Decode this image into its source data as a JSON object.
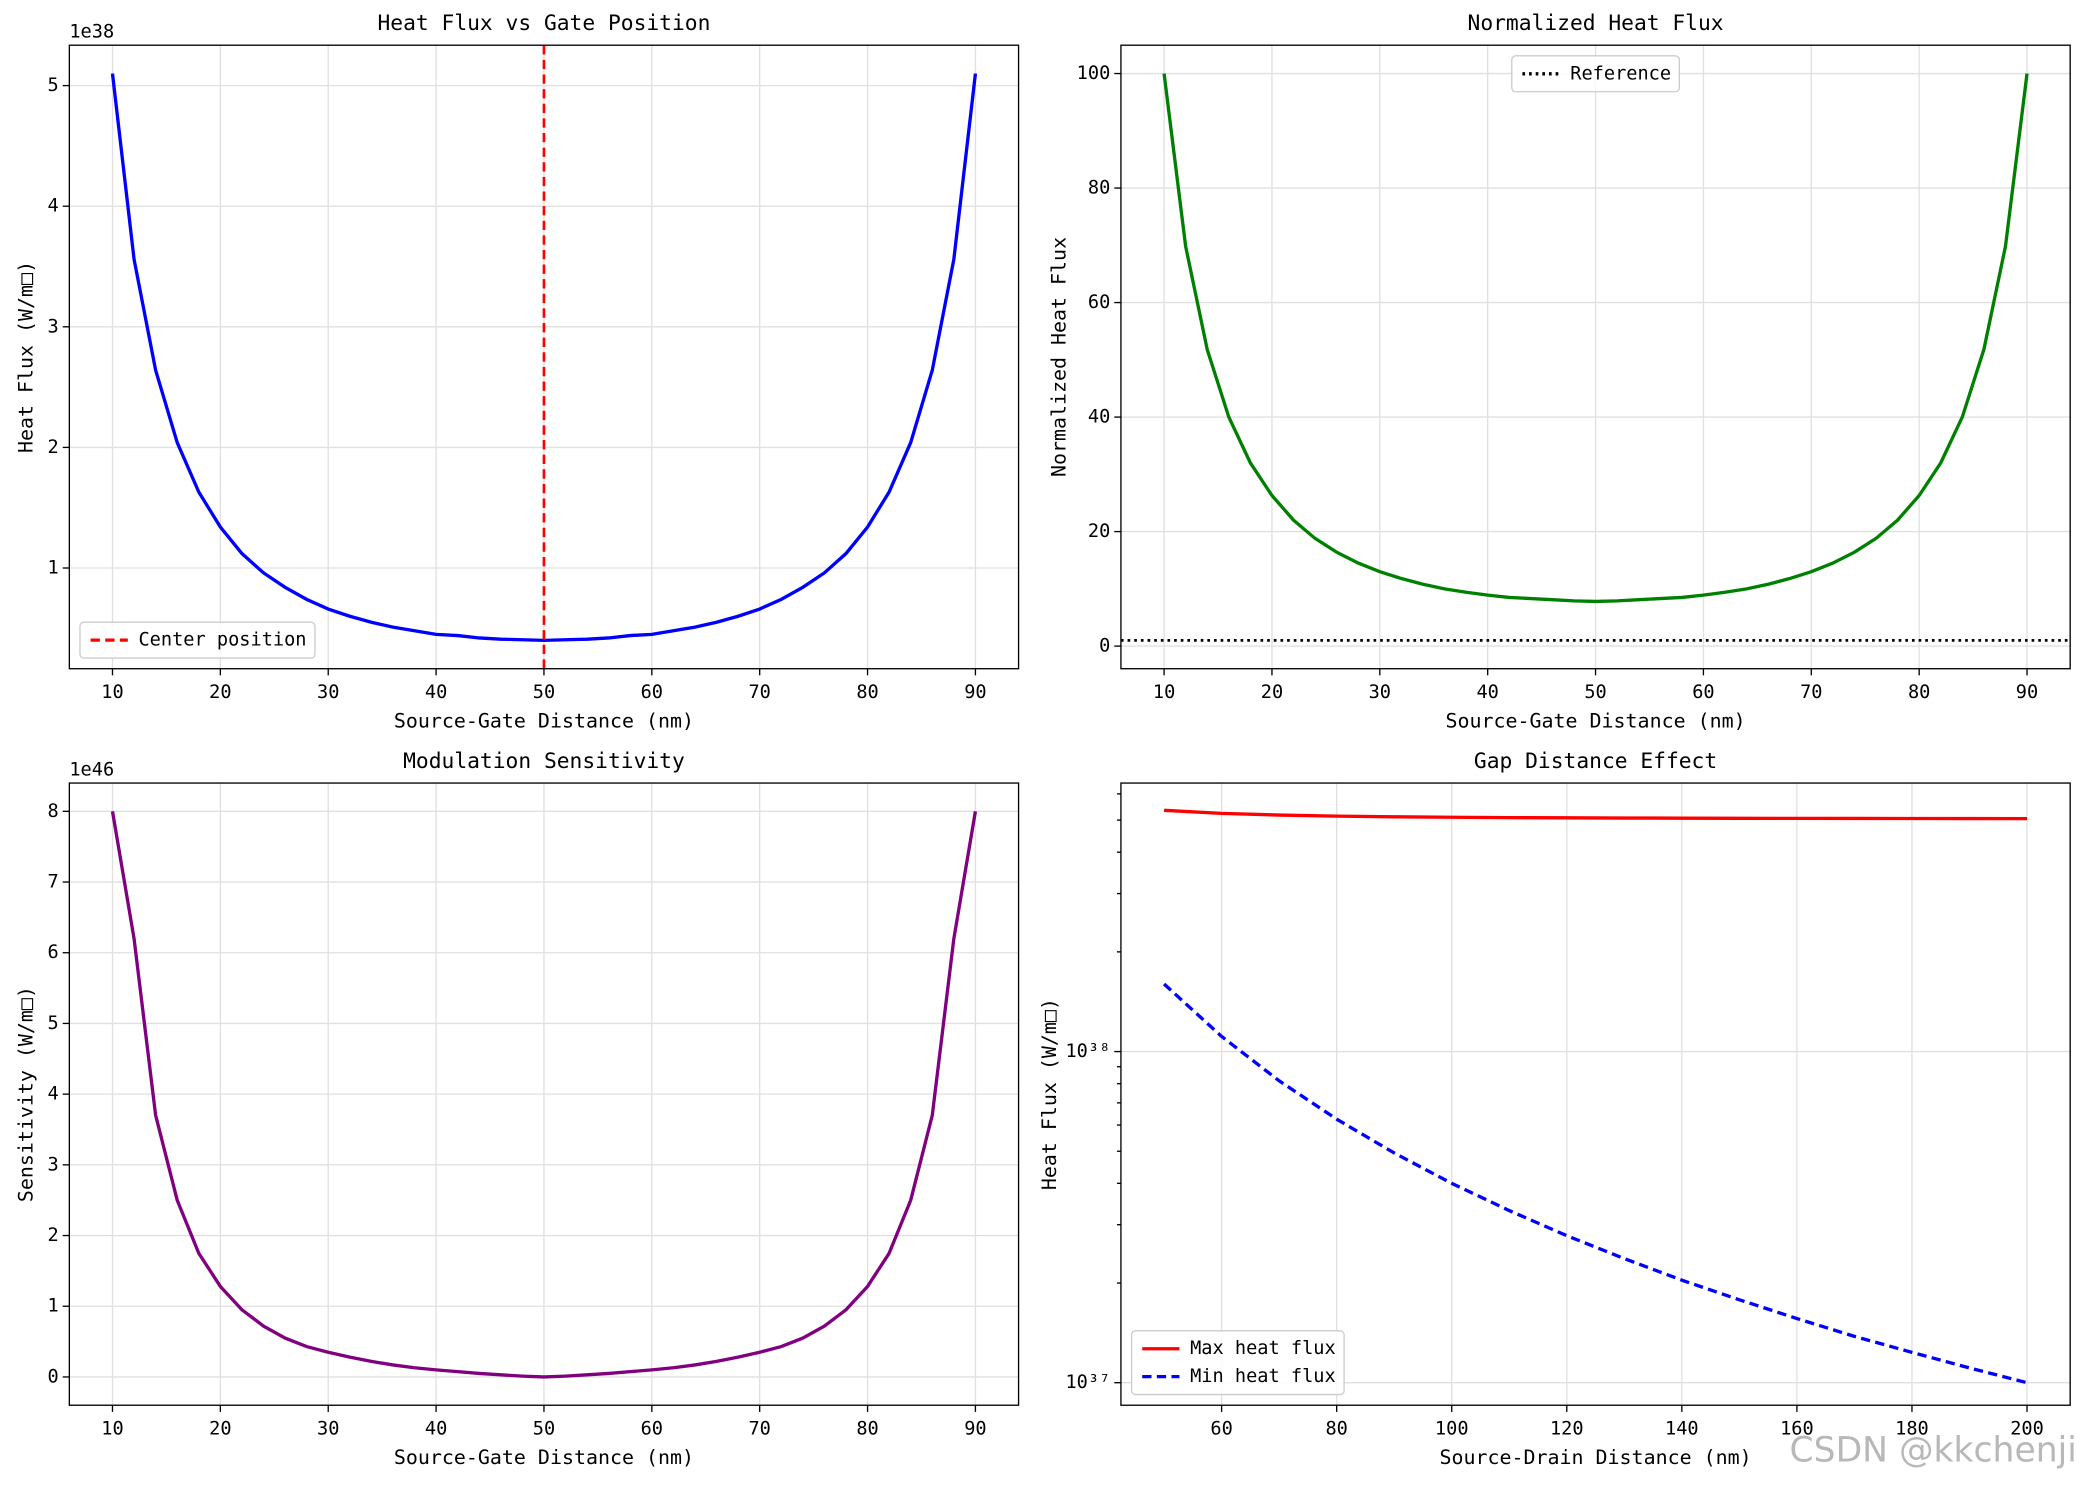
{
  "chart_data": [
    {
      "type": "line",
      "title": "Heat Flux vs Gate Position",
      "xlabel": "Source-Gate Distance (nm)",
      "ylabel": "Heat Flux (W/m□)",
      "offset_text": "1e38",
      "x": [
        10,
        12,
        14,
        16,
        18,
        20,
        22,
        24,
        26,
        28,
        30,
        32,
        34,
        36,
        38,
        40,
        42,
        44,
        46,
        48,
        50,
        52,
        54,
        56,
        58,
        60,
        62,
        64,
        66,
        68,
        70,
        72,
        74,
        76,
        78,
        80,
        82,
        84,
        86,
        88,
        90
      ],
      "series": [
        {
          "color": "#0000ff",
          "values": [
            5.1,
            3.56,
            2.64,
            2.04,
            1.63,
            1.34,
            1.12,
            0.96,
            0.84,
            0.74,
            0.66,
            0.6,
            0.55,
            0.51,
            0.48,
            0.45,
            0.44,
            0.42,
            0.41,
            0.405,
            0.4,
            0.405,
            0.41,
            0.42,
            0.44,
            0.45,
            0.48,
            0.51,
            0.55,
            0.6,
            0.66,
            0.74,
            0.84,
            0.96,
            1.12,
            1.34,
            1.63,
            2.04,
            2.64,
            3.56,
            5.1
          ]
        }
      ],
      "vlines": [
        {
          "x": 50,
          "name": "Center position",
          "color": "#ff0000",
          "style": "dashed"
        }
      ],
      "xlim": [
        6,
        94
      ],
      "ylim": [
        0.165,
        5.335
      ],
      "xticks": [
        10,
        20,
        30,
        40,
        50,
        60,
        70,
        80,
        90
      ],
      "yticks": [
        1,
        2,
        3,
        4,
        5
      ],
      "grid": true,
      "legend": "lower left"
    },
    {
      "type": "line",
      "title": "Normalized Heat Flux",
      "xlabel": "Source-Gate Distance (nm)",
      "ylabel": "Normalized Heat Flux",
      "x": [
        10,
        12,
        14,
        16,
        18,
        20,
        22,
        24,
        26,
        28,
        30,
        32,
        34,
        36,
        38,
        40,
        42,
        44,
        46,
        48,
        50,
        52,
        54,
        56,
        58,
        60,
        62,
        64,
        66,
        68,
        70,
        72,
        74,
        76,
        78,
        80,
        82,
        84,
        86,
        88,
        90
      ],
      "series": [
        {
          "color": "#008000",
          "values": [
            100,
            69.8,
            51.8,
            40.0,
            32.0,
            26.3,
            22.0,
            18.8,
            16.4,
            14.5,
            13.0,
            11.8,
            10.8,
            10.0,
            9.4,
            8.9,
            8.5,
            8.3,
            8.1,
            7.9,
            7.8,
            7.9,
            8.1,
            8.3,
            8.5,
            8.9,
            9.4,
            10.0,
            10.8,
            11.8,
            13.0,
            14.5,
            16.4,
            18.8,
            22.0,
            26.3,
            32.0,
            40.0,
            51.8,
            69.8,
            100
          ]
        }
      ],
      "hlines": [
        {
          "y": 1,
          "name": "Reference",
          "color": "#000000",
          "style": "dotted"
        }
      ],
      "xlim": [
        6,
        94
      ],
      "ylim": [
        -3.95,
        104.95
      ],
      "xticks": [
        10,
        20,
        30,
        40,
        50,
        60,
        70,
        80,
        90
      ],
      "yticks": [
        0,
        20,
        40,
        60,
        80,
        100
      ],
      "grid": true,
      "legend": "upper center"
    },
    {
      "type": "line",
      "title": "Modulation Sensitivity",
      "xlabel": "Source-Gate Distance (nm)",
      "ylabel": "Sensitivity (W/m□)",
      "offset_text": "1e46",
      "x": [
        10,
        12,
        14,
        16,
        18,
        20,
        22,
        24,
        26,
        28,
        30,
        32,
        34,
        36,
        38,
        40,
        42,
        44,
        46,
        48,
        50,
        52,
        54,
        56,
        58,
        60,
        62,
        64,
        66,
        68,
        70,
        72,
        74,
        76,
        78,
        80,
        82,
        84,
        86,
        88,
        90
      ],
      "series": [
        {
          "color": "#800080",
          "values": [
            8.0,
            6.2,
            3.7,
            2.5,
            1.75,
            1.28,
            0.95,
            0.72,
            0.55,
            0.43,
            0.35,
            0.28,
            0.22,
            0.17,
            0.13,
            0.1,
            0.075,
            0.05,
            0.03,
            0.012,
            0,
            0.012,
            0.03,
            0.05,
            0.075,
            0.1,
            0.13,
            0.17,
            0.22,
            0.28,
            0.35,
            0.43,
            0.55,
            0.72,
            0.95,
            1.28,
            1.75,
            2.5,
            3.7,
            6.2,
            8.0
          ]
        }
      ],
      "xlim": [
        6,
        94
      ],
      "ylim": [
        -0.4,
        8.4
      ],
      "xticks": [
        10,
        20,
        30,
        40,
        50,
        60,
        70,
        80,
        90
      ],
      "yticks": [
        0,
        1,
        2,
        3,
        4,
        5,
        6,
        7,
        8
      ],
      "grid": true
    },
    {
      "type": "line",
      "title": "Gap Distance Effect",
      "xlabel": "Source-Drain Distance (nm)",
      "ylabel": "Heat Flux (W/m□)",
      "yscale": "log",
      "x": [
        50,
        60,
        70,
        80,
        90,
        100,
        110,
        120,
        130,
        140,
        150,
        160,
        170,
        180,
        190,
        200
      ],
      "series": [
        {
          "name": "Max heat flux",
          "color": "#ff0000",
          "style": "solid",
          "values": [
            5.353e+38,
            5.24e+38,
            5.178e+38,
            5.141e+38,
            5.117e+38,
            5.1e+38,
            5.088e+38,
            5.08e+38,
            5.073e+38,
            5.068e+38,
            5.064e+38,
            5.06e+38,
            5.058e+38,
            5.056e+38,
            5.054e+38,
            5.052e+38
          ]
        },
        {
          "name": "Min heat flux",
          "color": "#0000ff",
          "style": "dashed",
          "values": [
            1.6e+38,
            1.111e+38,
            8.16e+37,
            6.25e+37,
            4.94e+37,
            4e+37,
            3.31e+37,
            2.78e+37,
            2.37e+37,
            2.04e+37,
            1.78e+37,
            1.5625e+37,
            1.38e+37,
            1.235e+37,
            1.108e+37,
            1e+37
          ]
        }
      ],
      "xlim": [
        42.5,
        207.5
      ],
      "ylim": [
        8.55e+36,
        6.47e+38
      ],
      "xticks": [
        60,
        80,
        100,
        120,
        140,
        160,
        180,
        200
      ],
      "yticks": [
        {
          "value": 1e+37,
          "label": "10³⁷"
        },
        {
          "value": 1e+38,
          "label": "10³⁸"
        }
      ],
      "yminorticks": [
        2e+37,
        3e+37,
        4e+37,
        5e+37,
        6e+37,
        7e+37,
        8e+37,
        9e+37,
        2e+38,
        3e+38,
        4e+38,
        5e+38,
        6e+38
      ],
      "grid": true,
      "legend": "lower left"
    }
  ],
  "watermark": "CSDN @kkchenji"
}
